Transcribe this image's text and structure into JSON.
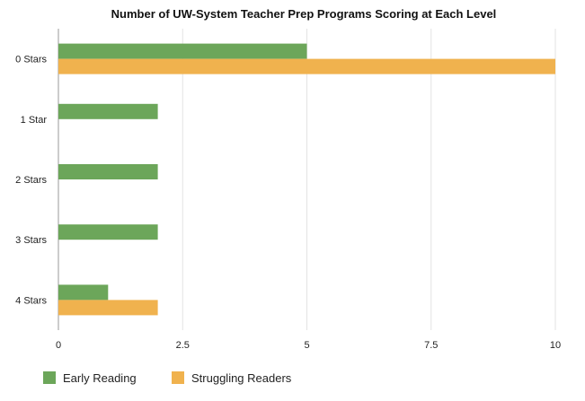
{
  "chart_data": {
    "type": "bar",
    "orientation": "horizontal",
    "title": "Number of UW-System Teacher Prep Programs Scoring at Each Level",
    "categories": [
      "0 Stars",
      "1 Star",
      "2 Stars",
      "3 Stars",
      "4 Stars"
    ],
    "series": [
      {
        "name": "Early Reading",
        "color": "#6ca65a",
        "values": [
          5,
          2,
          2,
          2,
          1
        ]
      },
      {
        "name": "Struggling Readers",
        "color": "#f0b24e",
        "values": [
          10,
          null,
          null,
          null,
          2
        ]
      }
    ],
    "x_ticks": [
      "0",
      "2.5",
      "5",
      "7.5",
      "10"
    ],
    "xlim": [
      0,
      10
    ],
    "grid": true,
    "legend_position": "bottom-left"
  }
}
